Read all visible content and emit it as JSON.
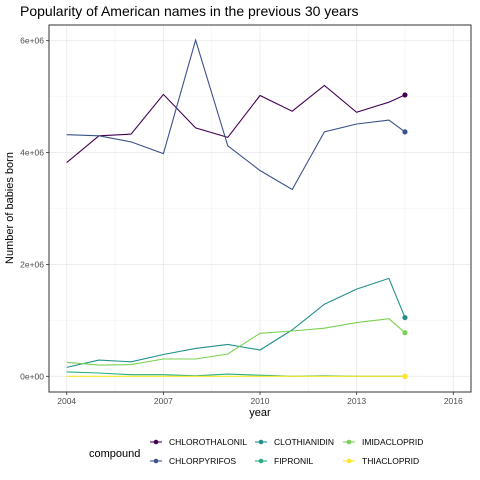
{
  "chart_data": {
    "type": "line",
    "title": "Popularity of American names in the previous 30 years",
    "xlabel": "year",
    "ylabel": "Number of babies born",
    "xlim": [
      2003.45,
      2016.55
    ],
    "ylim": [
      -280000,
      6280000
    ],
    "x_ticks": [
      2004,
      2007,
      2010,
      2013,
      2016
    ],
    "x_tick_labels": [
      "2004",
      "2007",
      "2010",
      "2013",
      "2016"
    ],
    "y_ticks": [
      0,
      2000000,
      4000000,
      6000000
    ],
    "y_tick_labels": [
      "0e+00",
      "2e+06",
      "4e+06",
      "6e+06"
    ],
    "grid": true,
    "legend_title": "compound",
    "legend_position": "bottom",
    "endpoint_x": 2014.5,
    "x": [
      2004,
      2005,
      2006,
      2007,
      2008,
      2009,
      2010,
      2011,
      2012,
      2013,
      2014
    ],
    "series": [
      {
        "name": "CHLOROTHALONIL",
        "color": "#440154",
        "values": [
          3820000,
          4300000,
          4330000,
          5040000,
          4440000,
          4270000,
          5020000,
          4740000,
          5200000,
          4720000,
          4900000
        ],
        "end_value": 5030000
      },
      {
        "name": "CHLORPYRIFOS",
        "color": "#3b528b",
        "values": [
          4320000,
          4300000,
          4190000,
          3980000,
          6010000,
          4120000,
          3680000,
          3340000,
          4370000,
          4510000,
          4580000
        ],
        "end_value": 4370000
      },
      {
        "name": "CLOTHIANIDIN",
        "color": "#21908c",
        "values": [
          160000,
          290000,
          260000,
          390000,
          500000,
          570000,
          470000,
          830000,
          1290000,
          1560000,
          1750000
        ],
        "end_value": 1050000
      },
      {
        "name": "FIPRONIL",
        "color": "#27ad81",
        "values": [
          80000,
          60000,
          30000,
          30000,
          10000,
          40000,
          20000,
          0,
          10000,
          0,
          0
        ],
        "end_value": 0
      },
      {
        "name": "IMIDACLOPRID",
        "color": "#7ad151",
        "values": [
          250000,
          200000,
          210000,
          310000,
          310000,
          400000,
          770000,
          810000,
          860000,
          960000,
          1030000
        ],
        "end_value": 780000
      },
      {
        "name": "THIACLOPRID",
        "color": "#fde725",
        "values": [
          0,
          0,
          0,
          0,
          0,
          0,
          0,
          0,
          0,
          0,
          0
        ],
        "end_value": 0
      }
    ]
  }
}
